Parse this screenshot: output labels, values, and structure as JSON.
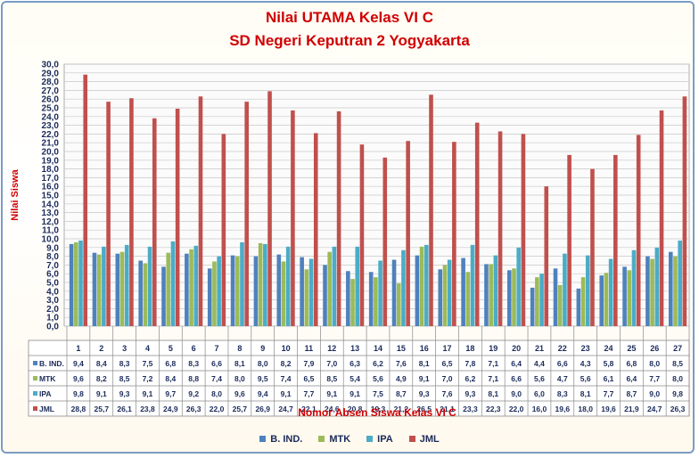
{
  "chart_data": {
    "type": "bar",
    "title": "Nilai UTAMA Kelas VI C",
    "subtitle": "SD Negeri Keputran 2 Yogyakarta",
    "xlabel": "Nomor Absen Siswa Kelas VI C",
    "ylabel": "Nilai Siswa",
    "ylim": [
      0,
      30
    ],
    "ytick_step": 1,
    "ytick_format": "one decimal, comma separator",
    "grid": "horizontal",
    "legend_position": "bottom",
    "categories": [
      "1",
      "2",
      "3",
      "4",
      "5",
      "6",
      "7",
      "8",
      "9",
      "10",
      "11",
      "12",
      "13",
      "14",
      "15",
      "16",
      "17",
      "18",
      "19",
      "20",
      "21",
      "22",
      "23",
      "24",
      "25",
      "26",
      "27"
    ],
    "series": [
      {
        "name": "B. IND.",
        "color": "#4f81bd",
        "labels": [
          "9,4",
          "8,4",
          "8,3",
          "7,5",
          "6,8",
          "8,3",
          "6,6",
          "8,1",
          "8,0",
          "8,2",
          "7,9",
          "7,0",
          "6,3",
          "6,2",
          "7,6",
          "8,1",
          "6,5",
          "7,8",
          "7,1",
          "6,4",
          "4,4",
          "6,6",
          "4,3",
          "5,8",
          "6,8",
          "8,0",
          "8,5"
        ],
        "values": [
          9.4,
          8.4,
          8.3,
          7.5,
          6.8,
          8.3,
          6.6,
          8.1,
          8.0,
          8.2,
          7.9,
          7.0,
          6.3,
          6.2,
          7.6,
          8.1,
          6.5,
          7.8,
          7.1,
          6.4,
          4.4,
          6.6,
          4.3,
          5.8,
          6.8,
          8.0,
          8.5
        ]
      },
      {
        "name": "MTK",
        "color": "#9bbb59",
        "labels": [
          "9,6",
          "8,2",
          "8,5",
          "7,2",
          "8,4",
          "8,8",
          "7,4",
          "8,0",
          "9,5",
          "7,4",
          "6,5",
          "8,5",
          "5,4",
          "5,6",
          "4,9",
          "9,1",
          "7,0",
          "6,2",
          "7,1",
          "6,6",
          "5,6",
          "4,7",
          "5,6",
          "6,1",
          "6,4",
          "7,7",
          "8,0"
        ],
        "values": [
          9.6,
          8.2,
          8.5,
          7.2,
          8.4,
          8.8,
          7.4,
          8.0,
          9.5,
          7.4,
          6.5,
          8.5,
          5.4,
          5.6,
          4.9,
          9.1,
          7.0,
          6.2,
          7.1,
          6.6,
          5.6,
          4.7,
          5.6,
          6.1,
          6.4,
          7.7,
          8.0
        ]
      },
      {
        "name": "IPA",
        "color": "#4bacc6",
        "labels": [
          "9,8",
          "9,1",
          "9,3",
          "9,1",
          "9,7",
          "9,2",
          "8,0",
          "9,6",
          "9,4",
          "9,1",
          "7,7",
          "9,1",
          "9,1",
          "7,5",
          "8,7",
          "9,3",
          "7,6",
          "9,3",
          "8,1",
          "9,0",
          "6,0",
          "8,3",
          "8,1",
          "7,7",
          "8,7",
          "9,0",
          "9,8"
        ],
        "values": [
          9.8,
          9.1,
          9.3,
          9.1,
          9.7,
          9.2,
          8.0,
          9.6,
          9.4,
          9.1,
          7.7,
          9.1,
          9.1,
          7.5,
          8.7,
          9.3,
          7.6,
          9.3,
          8.1,
          9.0,
          6.0,
          8.3,
          8.1,
          7.7,
          8.7,
          9.0,
          9.8
        ]
      },
      {
        "name": "JML",
        "color": "#c0504d",
        "labels": [
          "28,8",
          "25,7",
          "26,1",
          "23,8",
          "24,9",
          "26,3",
          "22,0",
          "25,7",
          "26,9",
          "24,7",
          "22,1",
          "24,6",
          "20,8",
          "19,3",
          "21,2",
          "26,5",
          "21,1",
          "23,3",
          "22,3",
          "22,0",
          "16,0",
          "19,6",
          "18,0",
          "19,6",
          "21,9",
          "24,7",
          "26,3"
        ],
        "values": [
          28.8,
          25.7,
          26.1,
          23.8,
          24.9,
          26.3,
          22.0,
          25.7,
          26.9,
          24.7,
          22.1,
          24.6,
          20.8,
          19.3,
          21.2,
          26.5,
          21.1,
          23.3,
          22.3,
          22.0,
          16.0,
          19.6,
          18.0,
          19.6,
          21.9,
          24.7,
          26.3
        ]
      }
    ]
  }
}
